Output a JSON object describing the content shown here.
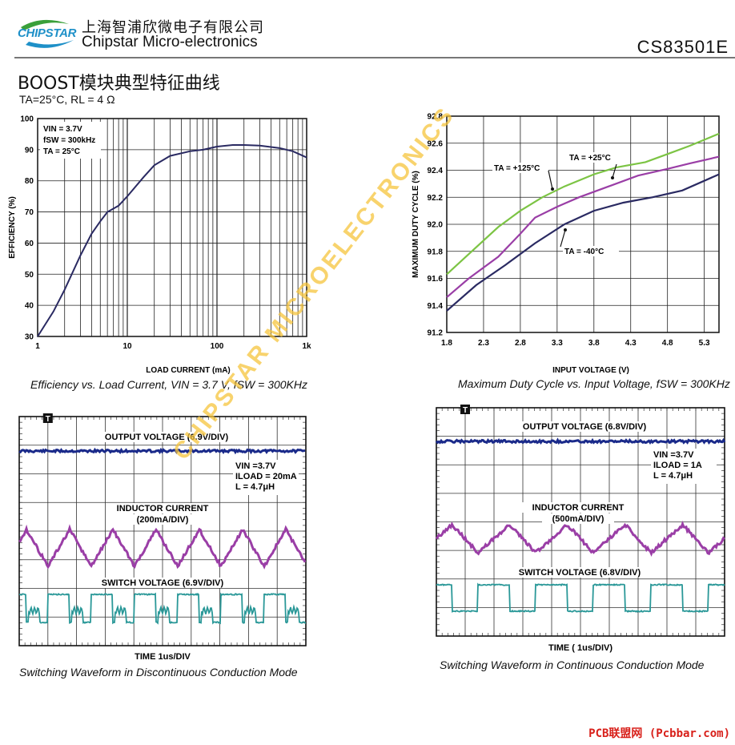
{
  "header": {
    "logo_text": "CHIPSTAR",
    "company_cn": "上海智浦欣微电子有限公司",
    "company_en": "Chipstar Micro-electronics",
    "part_number": "CS83501E"
  },
  "page_title": "BOOST模块典型特征曲线",
  "conditions": "TA=25°C, RL = 4 Ω",
  "colors": {
    "logo_blue": "#1e90c8",
    "logo_green": "#3aa03a",
    "navy": "#2a2a62",
    "purple": "#9a3ea6",
    "green": "#7cc444",
    "teal": "#2a9898",
    "scope_blue": "#1a2a8a",
    "watermark": "#f5c43c",
    "site_red": "#d8201a"
  },
  "chart_data": [
    {
      "id": "efficiency",
      "type": "line",
      "x_scale": "log",
      "xlim": [
        1,
        1000
      ],
      "ylim": [
        30,
        100
      ],
      "x_ticks": [
        "1",
        "10",
        "100",
        "1k"
      ],
      "y_ticks": [
        "30",
        "40",
        "50",
        "60",
        "70",
        "80",
        "90",
        "100"
      ],
      "xlabel": "LOAD CURRENT (mA)",
      "ylabel": "EFFICIENCY (%)",
      "grid": true,
      "annotation": [
        "VIN = 3.7V",
        "fSW = 300kHz",
        "TA = 25°C"
      ],
      "caption": "Efficiency vs. Load Current, VIN = 3.7 V, fSW = 300KHz",
      "series": [
        {
          "x": [
            1,
            1.5,
            2,
            3,
            4,
            5,
            6,
            8,
            10,
            15,
            20,
            30,
            50,
            70,
            100,
            150,
            200,
            300,
            500,
            700,
            1000
          ],
          "y": [
            30,
            38,
            45,
            56,
            63,
            67,
            70,
            72,
            75,
            81,
            85,
            88,
            89.5,
            90,
            91,
            91.5,
            91.5,
            91.3,
            90.5,
            89.5,
            87.5
          ]
        }
      ]
    },
    {
      "id": "duty-cycle",
      "type": "line",
      "xlim": [
        1.8,
        5.5
      ],
      "ylim": [
        91.2,
        92.8
      ],
      "x_ticks": [
        "1.8",
        "2.3",
        "2.8",
        "3.3",
        "3.8",
        "4.3",
        "4.8",
        "5.3"
      ],
      "y_ticks": [
        "91.2",
        "91.4",
        "91.6",
        "91.8",
        "92.0",
        "92.2",
        "92.4",
        "92.6",
        "92.8"
      ],
      "xlabel": "INPUT VOLTAGE (V)",
      "ylabel": "MAXIMUM DUTY CYCLE (%)",
      "grid": true,
      "caption": "Maximum Duty Cycle vs. Input Voltage, fSW = 300KHz",
      "series": [
        {
          "name": "TA = +125°C",
          "x": [
            1.8,
            2.1,
            2.5,
            2.8,
            3.1,
            3.4,
            3.8,
            4.1,
            4.5,
            4.8,
            5.1,
            5.5
          ],
          "y": [
            91.63,
            91.78,
            91.98,
            92.1,
            92.2,
            92.28,
            92.37,
            92.42,
            92.46,
            92.52,
            92.58,
            92.67
          ]
        },
        {
          "name": "TA = +25°C",
          "x": [
            1.8,
            2.1,
            2.5,
            2.8,
            3.0,
            3.3,
            3.6,
            4.0,
            4.4,
            4.8,
            5.1,
            5.5
          ],
          "y": [
            91.46,
            91.6,
            91.76,
            91.93,
            92.05,
            92.13,
            92.2,
            92.28,
            92.36,
            92.41,
            92.45,
            92.5
          ]
        },
        {
          "name": "TA = -40°C",
          "x": [
            1.8,
            2.2,
            2.6,
            3.0,
            3.4,
            3.8,
            4.2,
            4.6,
            5.0,
            5.5
          ],
          "y": [
            91.36,
            91.55,
            91.7,
            91.86,
            92.0,
            92.1,
            92.16,
            92.2,
            92.25,
            92.37
          ]
        }
      ]
    }
  ],
  "scopes": [
    {
      "id": "discontinuous",
      "labels": {
        "output": "OUTPUT VOLTAGE (6.9V/DIV)",
        "inductor": "INDUCTOR CURRENT",
        "inductor_scale": "(200mA/DIV)",
        "switch": "SWITCH VOLTAGE (6.9V/DIV)",
        "time": "TIME 1us/DIV"
      },
      "params": [
        "VIN =3.7V",
        "ILOAD = 20mA",
        "L = 4.7μH"
      ],
      "trigger": "T",
      "caption": "Switching Waveform in Discontinuous Conduction Mode"
    },
    {
      "id": "continuous",
      "labels": {
        "output": "OUTPUT VOLTAGE (6.8V/DIV)",
        "inductor": "INDUCTOR CURRENT",
        "inductor_scale": "(500mA/DIV)",
        "switch": "SWITCH VOLTAGE (6.8V/DIV)",
        "time": "TIME ( 1us/DIV)"
      },
      "params": [
        "VIN =3.7V",
        "ILOAD = 1A",
        "L = 4.7μH"
      ],
      "trigger": "T",
      "caption": "Switching Waveform in Continuous Conduction Mode"
    }
  ],
  "watermark": "CHIPSTAR MICROELECTRONICS",
  "site_mark": "PCB联盟网 (Pcbbar.com)"
}
